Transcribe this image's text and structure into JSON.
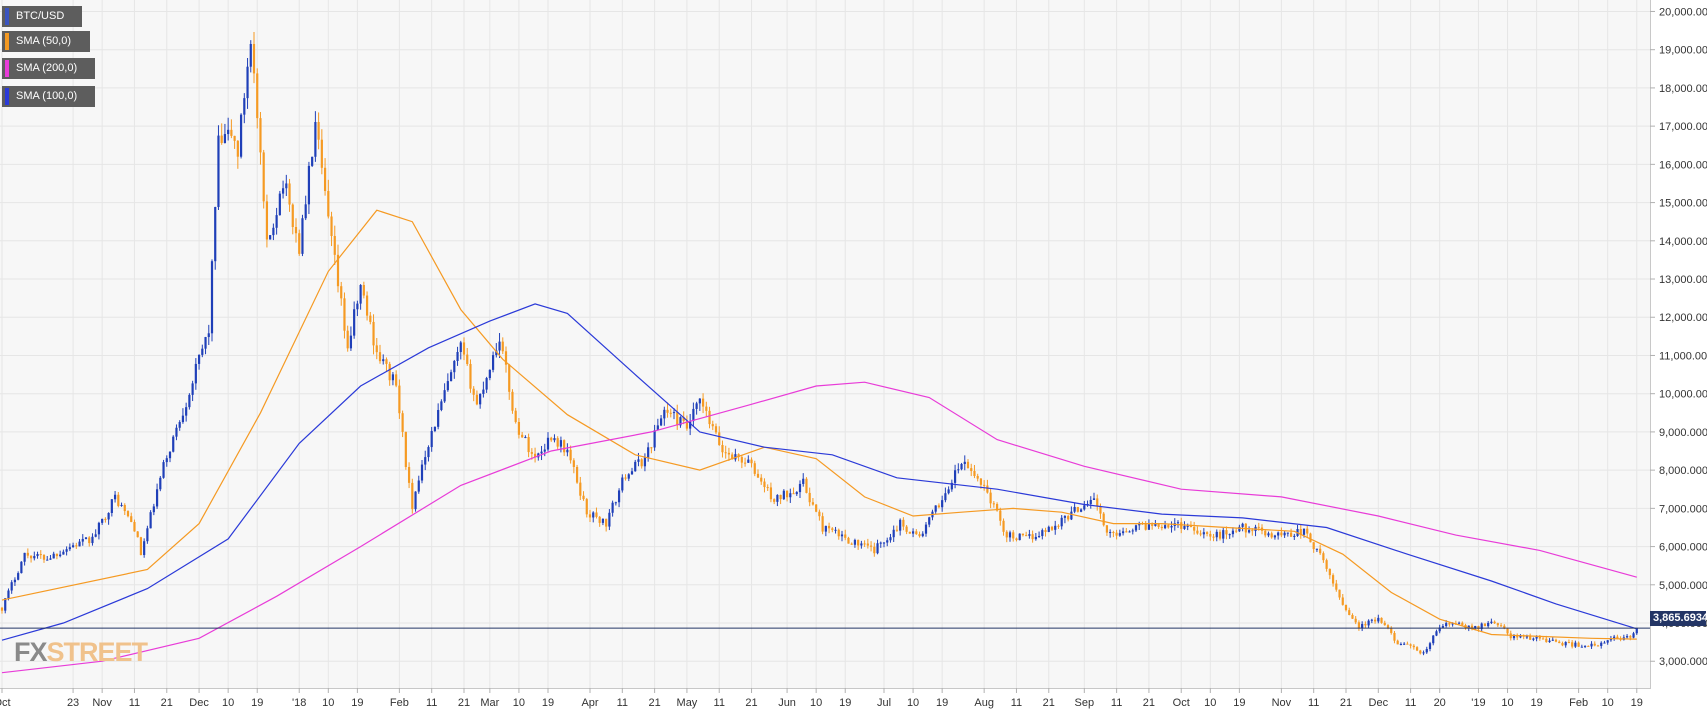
{
  "legend": [
    {
      "label": "BTC/USD",
      "color": "#3a54c0"
    },
    {
      "label": "SMA (50,0)",
      "color": "#f59a23"
    },
    {
      "label": "SMA (200,0)",
      "color": "#e83cd8"
    },
    {
      "label": "SMA (100,0)",
      "color": "#2b3ad8"
    }
  ],
  "logo": {
    "fx": "FX",
    "street": "STREET"
  },
  "price_tag": "3,865.6934",
  "chart_data": {
    "type": "line",
    "xlim": [
      "2017-10-01",
      "2019-02-20"
    ],
    "ylim": [
      2300,
      20300
    ],
    "y_ticks": [
      3000,
      4000,
      5000,
      6000,
      7000,
      8000,
      9000,
      10000,
      11000,
      12000,
      13000,
      14000,
      15000,
      16000,
      17000,
      18000,
      19000,
      20000
    ],
    "y_tick_labels": [
      "3,000.0000",
      "4,000.0000",
      "5,000.0000",
      "6,000.0000",
      "7,000.0000",
      "8,000.0000",
      "9,000.0000",
      "10,000.0000",
      "11,000.0000",
      "12,000.0000",
      "13,000.0000",
      "14,000.0000",
      "15,000.0000",
      "16,000.0000",
      "17,000.0000",
      "18,000.0000",
      "19,000.0000",
      "20,000.0000"
    ],
    "x_ticks": [
      {
        "date": "2017-10-01",
        "label": "Oct"
      },
      {
        "date": "2017-10-23",
        "label": "23"
      },
      {
        "date": "2017-11-01",
        "label": "Nov"
      },
      {
        "date": "2017-11-11",
        "label": "11"
      },
      {
        "date": "2017-11-21",
        "label": "21"
      },
      {
        "date": "2017-12-01",
        "label": "Dec"
      },
      {
        "date": "2017-12-10",
        "label": "10"
      },
      {
        "date": "2017-12-19",
        "label": "19"
      },
      {
        "date": "2018-01-01",
        "label": "'18"
      },
      {
        "date": "2018-01-10",
        "label": "10"
      },
      {
        "date": "2018-01-19",
        "label": "19"
      },
      {
        "date": "2018-02-01",
        "label": "Feb"
      },
      {
        "date": "2018-02-11",
        "label": "11"
      },
      {
        "date": "2018-02-21",
        "label": "21"
      },
      {
        "date": "2018-03-01",
        "label": "Mar"
      },
      {
        "date": "2018-03-10",
        "label": "10"
      },
      {
        "date": "2018-03-19",
        "label": "19"
      },
      {
        "date": "2018-04-01",
        "label": "Apr"
      },
      {
        "date": "2018-04-11",
        "label": "11"
      },
      {
        "date": "2018-04-21",
        "label": "21"
      },
      {
        "date": "2018-05-01",
        "label": "May"
      },
      {
        "date": "2018-05-11",
        "label": "11"
      },
      {
        "date": "2018-05-21",
        "label": "21"
      },
      {
        "date": "2018-06-01",
        "label": "Jun"
      },
      {
        "date": "2018-06-10",
        "label": "10"
      },
      {
        "date": "2018-06-19",
        "label": "19"
      },
      {
        "date": "2018-07-01",
        "label": "Jul"
      },
      {
        "date": "2018-07-10",
        "label": "10"
      },
      {
        "date": "2018-07-19",
        "label": "19"
      },
      {
        "date": "2018-08-01",
        "label": "Aug"
      },
      {
        "date": "2018-08-11",
        "label": "11"
      },
      {
        "date": "2018-08-21",
        "label": "21"
      },
      {
        "date": "2018-09-01",
        "label": "Sep"
      },
      {
        "date": "2018-09-11",
        "label": "11"
      },
      {
        "date": "2018-09-21",
        "label": "21"
      },
      {
        "date": "2018-10-01",
        "label": "Oct"
      },
      {
        "date": "2018-10-10",
        "label": "10"
      },
      {
        "date": "2018-10-19",
        "label": "19"
      },
      {
        "date": "2018-11-01",
        "label": "Nov"
      },
      {
        "date": "2018-11-11",
        "label": "11"
      },
      {
        "date": "2018-11-21",
        "label": "21"
      },
      {
        "date": "2018-12-01",
        "label": "Dec"
      },
      {
        "date": "2018-12-11",
        "label": "11"
      },
      {
        "date": "2018-12-20",
        "label": "20"
      },
      {
        "date": "2019-01-01",
        "label": "'19"
      },
      {
        "date": "2019-01-10",
        "label": "10"
      },
      {
        "date": "2019-01-19",
        "label": "19"
      },
      {
        "date": "2019-02-01",
        "label": "Feb"
      },
      {
        "date": "2019-02-10",
        "label": "10"
      },
      {
        "date": "2019-02-19",
        "label": "19"
      }
    ],
    "grid": true,
    "current_price": 3865.69,
    "series": [
      {
        "name": "BTC/USD",
        "type": "close",
        "color_up": "#1f3fb8",
        "color_down": "#f59a23",
        "points": [
          [
            "2017-10-01",
            4400
          ],
          [
            "2017-10-08",
            5800
          ],
          [
            "2017-10-15",
            5700
          ],
          [
            "2017-10-22",
            6000
          ],
          [
            "2017-10-29",
            6200
          ],
          [
            "2017-11-05",
            7300
          ],
          [
            "2017-11-11",
            6500
          ],
          [
            "2017-11-13",
            5800
          ],
          [
            "2017-11-20",
            8100
          ],
          [
            "2017-11-27",
            9800
          ],
          [
            "2017-12-04",
            11700
          ],
          [
            "2017-12-07",
            16500
          ],
          [
            "2017-12-11",
            16800
          ],
          [
            "2017-12-13",
            16300
          ],
          [
            "2017-12-17",
            19400
          ],
          [
            "2017-12-22",
            13800
          ],
          [
            "2017-12-27",
            15600
          ],
          [
            "2018-01-01",
            13800
          ],
          [
            "2018-01-06",
            17000
          ],
          [
            "2018-01-10",
            14500
          ],
          [
            "2018-01-16",
            11200
          ],
          [
            "2018-01-20",
            12800
          ],
          [
            "2018-01-25",
            11100
          ],
          [
            "2018-01-31",
            10200
          ],
          [
            "2018-02-05",
            6900
          ],
          [
            "2018-02-08",
            8200
          ],
          [
            "2018-02-15",
            10000
          ],
          [
            "2018-02-20",
            11200
          ],
          [
            "2018-02-25",
            9700
          ],
          [
            "2018-03-04",
            11500
          ],
          [
            "2018-03-09",
            9200
          ],
          [
            "2018-03-15",
            8300
          ],
          [
            "2018-03-20",
            8900
          ],
          [
            "2018-03-25",
            8500
          ],
          [
            "2018-03-31",
            6900
          ],
          [
            "2018-04-06",
            6600
          ],
          [
            "2018-04-12",
            7900
          ],
          [
            "2018-04-18",
            8300
          ],
          [
            "2018-04-24",
            9600
          ],
          [
            "2018-05-01",
            9100
          ],
          [
            "2018-05-05",
            9800
          ],
          [
            "2018-05-12",
            8500
          ],
          [
            "2018-05-20",
            8200
          ],
          [
            "2018-05-28",
            7200
          ],
          [
            "2018-06-06",
            7650
          ],
          [
            "2018-06-12",
            6500
          ],
          [
            "2018-06-22",
            6100
          ],
          [
            "2018-06-28",
            5900
          ],
          [
            "2018-07-06",
            6600
          ],
          [
            "2018-07-12",
            6250
          ],
          [
            "2018-07-20",
            7400
          ],
          [
            "2018-07-25",
            8200
          ],
          [
            "2018-08-01",
            7600
          ],
          [
            "2018-08-08",
            6300
          ],
          [
            "2018-08-14",
            6200
          ],
          [
            "2018-08-22",
            6500
          ],
          [
            "2018-08-30",
            7000
          ],
          [
            "2018-09-04",
            7300
          ],
          [
            "2018-09-08",
            6300
          ],
          [
            "2018-09-16",
            6500
          ],
          [
            "2018-09-24",
            6600
          ],
          [
            "2018-10-03",
            6550
          ],
          [
            "2018-10-11",
            6250
          ],
          [
            "2018-10-20",
            6500
          ],
          [
            "2018-10-30",
            6300
          ],
          [
            "2018-11-08",
            6400
          ],
          [
            "2018-11-14",
            5600
          ],
          [
            "2018-11-20",
            4500
          ],
          [
            "2018-11-25",
            3900
          ],
          [
            "2018-12-01",
            4100
          ],
          [
            "2018-12-07",
            3500
          ],
          [
            "2018-12-15",
            3200
          ],
          [
            "2018-12-20",
            3900
          ],
          [
            "2018-12-24",
            4000
          ],
          [
            "2018-12-30",
            3850
          ],
          [
            "2019-01-06",
            4050
          ],
          [
            "2019-01-11",
            3650
          ],
          [
            "2019-01-20",
            3600
          ],
          [
            "2019-01-28",
            3450
          ],
          [
            "2019-02-07",
            3400
          ],
          [
            "2019-02-12",
            3600
          ],
          [
            "2019-02-17",
            3650
          ],
          [
            "2019-02-19",
            3866
          ]
        ]
      },
      {
        "name": "SMA (50,0)",
        "color": "#f59a23",
        "points": [
          [
            "2017-10-01",
            4600
          ],
          [
            "2017-11-15",
            5400
          ],
          [
            "2017-12-01",
            6600
          ],
          [
            "2017-12-20",
            9500
          ],
          [
            "2018-01-10",
            13200
          ],
          [
            "2018-01-25",
            14800
          ],
          [
            "2018-02-05",
            14500
          ],
          [
            "2018-02-20",
            12200
          ],
          [
            "2018-03-05",
            10900
          ],
          [
            "2018-03-25",
            9450
          ],
          [
            "2018-04-15",
            8400
          ],
          [
            "2018-05-05",
            8000
          ],
          [
            "2018-05-25",
            8600
          ],
          [
            "2018-06-10",
            8300
          ],
          [
            "2018-06-25",
            7300
          ],
          [
            "2018-07-10",
            6800
          ],
          [
            "2018-07-25",
            6900
          ],
          [
            "2018-08-10",
            7000
          ],
          [
            "2018-08-25",
            6900
          ],
          [
            "2018-09-10",
            6600
          ],
          [
            "2018-09-25",
            6600
          ],
          [
            "2018-10-15",
            6500
          ],
          [
            "2018-11-05",
            6400
          ],
          [
            "2018-11-20",
            5800
          ],
          [
            "2018-12-05",
            4800
          ],
          [
            "2018-12-20",
            4100
          ],
          [
            "2019-01-05",
            3700
          ],
          [
            "2019-01-20",
            3650
          ],
          [
            "2019-02-05",
            3600
          ],
          [
            "2019-02-19",
            3580
          ]
        ]
      },
      {
        "name": "SMA (100,0)",
        "color": "#2b3ad8",
        "points": [
          [
            "2017-10-01",
            3550
          ],
          [
            "2017-10-20",
            4000
          ],
          [
            "2017-11-15",
            4900
          ],
          [
            "2017-12-10",
            6200
          ],
          [
            "2018-01-01",
            8700
          ],
          [
            "2018-01-20",
            10200
          ],
          [
            "2018-02-10",
            11200
          ],
          [
            "2018-03-01",
            11900
          ],
          [
            "2018-03-15",
            12350
          ],
          [
            "2018-03-25",
            12100
          ],
          [
            "2018-04-15",
            10500
          ],
          [
            "2018-05-05",
            9000
          ],
          [
            "2018-05-25",
            8600
          ],
          [
            "2018-06-15",
            8400
          ],
          [
            "2018-07-05",
            7800
          ],
          [
            "2018-08-05",
            7500
          ],
          [
            "2018-09-01",
            7100
          ],
          [
            "2018-09-25",
            6850
          ],
          [
            "2018-10-20",
            6750
          ],
          [
            "2018-11-15",
            6500
          ],
          [
            "2018-12-10",
            5800
          ],
          [
            "2019-01-05",
            5100
          ],
          [
            "2019-01-25",
            4500
          ],
          [
            "2019-02-19",
            3850
          ]
        ]
      },
      {
        "name": "SMA (200,0)",
        "color": "#e83cd8",
        "points": [
          [
            "2017-10-01",
            2700
          ],
          [
            "2017-11-01",
            3000
          ],
          [
            "2017-12-01",
            3600
          ],
          [
            "2017-12-25",
            4700
          ],
          [
            "2018-01-20",
            6000
          ],
          [
            "2018-02-20",
            7600
          ],
          [
            "2018-03-20",
            8500
          ],
          [
            "2018-04-20",
            9000
          ],
          [
            "2018-05-20",
            9700
          ],
          [
            "2018-06-10",
            10200
          ],
          [
            "2018-06-25",
            10300
          ],
          [
            "2018-07-15",
            9900
          ],
          [
            "2018-08-05",
            8800
          ],
          [
            "2018-09-01",
            8100
          ],
          [
            "2018-10-01",
            7500
          ],
          [
            "2018-11-01",
            7300
          ],
          [
            "2018-12-01",
            6800
          ],
          [
            "2018-12-25",
            6300
          ],
          [
            "2019-01-20",
            5900
          ],
          [
            "2019-02-19",
            5200
          ]
        ]
      }
    ]
  }
}
